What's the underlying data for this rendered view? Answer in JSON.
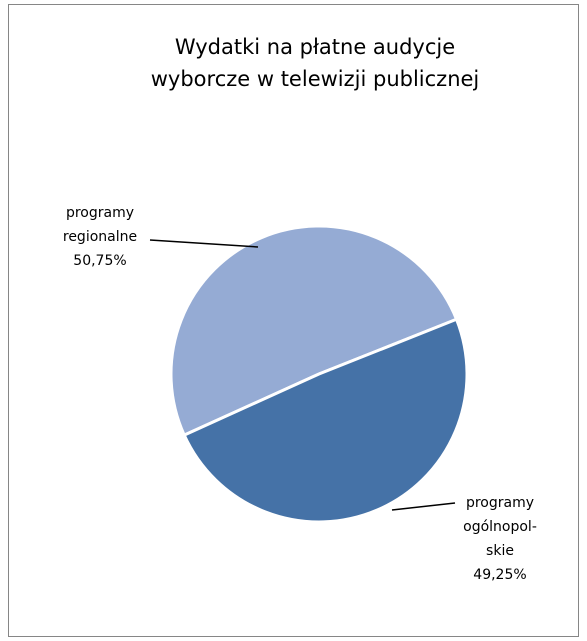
{
  "chart_data": {
    "type": "pie",
    "title": [
      "Wydatki na płatne audycje",
      "wyborcze w telewizji publicznej"
    ],
    "categories": [
      [
        "programy",
        "regionalne"
      ],
      [
        "programy",
        "ogólnopol-",
        "skie"
      ]
    ],
    "values": [
      50.75,
      49.25
    ],
    "value_labels": [
      "50,75%",
      "49,25%"
    ],
    "colors": [
      "#95abd4",
      "#4572a7"
    ]
  }
}
